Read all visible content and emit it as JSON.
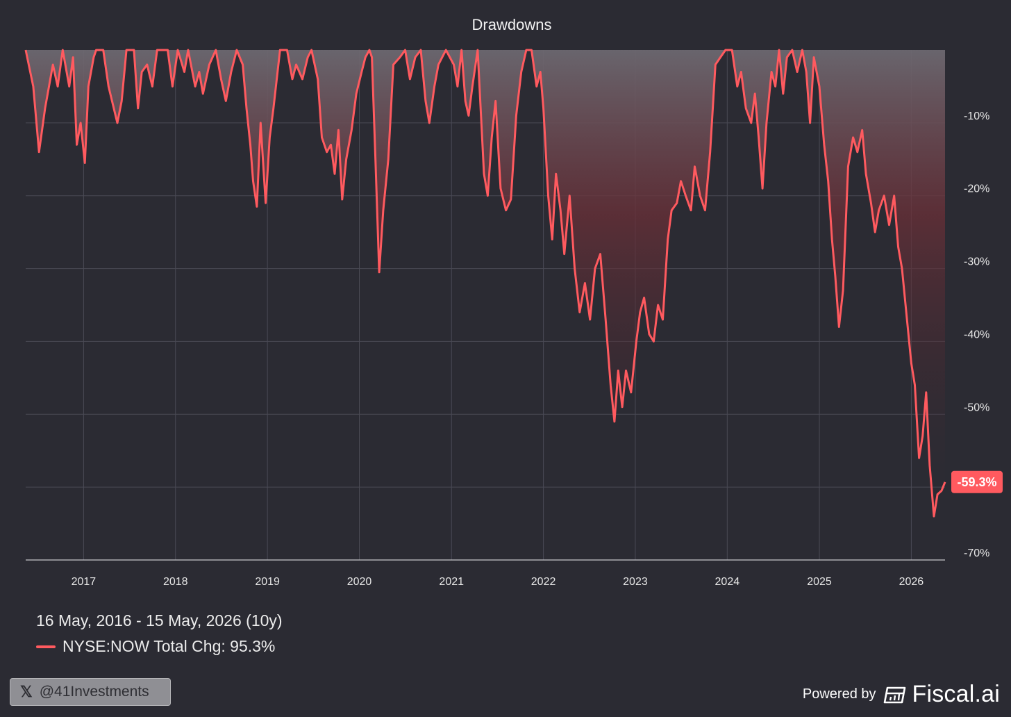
{
  "chart_data": {
    "type": "area",
    "title": "Drawdowns",
    "xlabel": "",
    "ylabel": "",
    "x_range": [
      "2016-05-16",
      "2026-05-15"
    ],
    "ylim": [
      -70,
      0
    ],
    "y_ticks": [
      -10,
      -20,
      -30,
      -40,
      -50,
      -60,
      -70
    ],
    "y_tick_labels": [
      "-10%",
      "-20%",
      "-30%",
      "-40%",
      "-50%",
      "",
      "-70%"
    ],
    "x_ticks": [
      "2017-01-01",
      "2018-01-01",
      "2019-01-01",
      "2020-01-01",
      "2021-01-01",
      "2022-01-01",
      "2023-01-01",
      "2024-01-01",
      "2025-01-01",
      "2026-01-01"
    ],
    "x_tick_labels": [
      "2017",
      "2018",
      "2019",
      "2020",
      "2021",
      "2022",
      "2023",
      "2024",
      "2025",
      "2026"
    ],
    "grid": true,
    "legend_position": "bottom-left",
    "series": [
      {
        "name": "NYSE:NOW Total Chg: 95.3%",
        "color": "#ff5a5f",
        "end_label": "-59.3%",
        "points": [
          [
            "2016-05-16",
            0
          ],
          [
            "2016-06-15",
            -5
          ],
          [
            "2016-07-08",
            -14
          ],
          [
            "2016-08-01",
            -8
          ],
          [
            "2016-09-01",
            -2
          ],
          [
            "2016-09-20",
            -5
          ],
          [
            "2016-10-10",
            0
          ],
          [
            "2016-11-05",
            -5
          ],
          [
            "2016-11-20",
            -1
          ],
          [
            "2016-12-05",
            -13
          ],
          [
            "2016-12-20",
            -10
          ],
          [
            "2017-01-06",
            -15.5
          ],
          [
            "2017-01-20",
            -5
          ],
          [
            "2017-02-10",
            -1
          ],
          [
            "2017-02-20",
            0
          ],
          [
            "2017-03-20",
            0
          ],
          [
            "2017-04-10",
            -5
          ],
          [
            "2017-05-01",
            -8
          ],
          [
            "2017-05-15",
            -10
          ],
          [
            "2017-06-01",
            -7
          ],
          [
            "2017-06-20",
            0
          ],
          [
            "2017-07-20",
            0
          ],
          [
            "2017-08-05",
            -8
          ],
          [
            "2017-08-20",
            -3
          ],
          [
            "2017-09-10",
            -2
          ],
          [
            "2017-10-01",
            -5
          ],
          [
            "2017-10-20",
            0
          ],
          [
            "2017-12-01",
            0
          ],
          [
            "2017-12-20",
            -5
          ],
          [
            "2018-01-10",
            0
          ],
          [
            "2018-02-05",
            -3
          ],
          [
            "2018-02-20",
            0
          ],
          [
            "2018-03-20",
            -5
          ],
          [
            "2018-04-05",
            -3
          ],
          [
            "2018-04-20",
            -6
          ],
          [
            "2018-05-15",
            -2
          ],
          [
            "2018-06-10",
            0
          ],
          [
            "2018-07-01",
            -4
          ],
          [
            "2018-07-20",
            -7
          ],
          [
            "2018-08-10",
            -3
          ],
          [
            "2018-09-01",
            0
          ],
          [
            "2018-09-25",
            -2
          ],
          [
            "2018-10-10",
            -8
          ],
          [
            "2018-10-25",
            -13
          ],
          [
            "2018-11-05",
            -18
          ],
          [
            "2018-11-20",
            -21.5
          ],
          [
            "2018-12-05",
            -10
          ],
          [
            "2018-12-25",
            -21
          ],
          [
            "2019-01-10",
            -12
          ],
          [
            "2019-01-25",
            -8
          ],
          [
            "2019-02-20",
            0
          ],
          [
            "2019-03-20",
            0
          ],
          [
            "2019-04-10",
            -4
          ],
          [
            "2019-04-25",
            -2
          ],
          [
            "2019-05-20",
            -4
          ],
          [
            "2019-06-10",
            -1
          ],
          [
            "2019-06-25",
            0
          ],
          [
            "2019-07-20",
            -4
          ],
          [
            "2019-08-05",
            -12
          ],
          [
            "2019-08-25",
            -14
          ],
          [
            "2019-09-10",
            -13
          ],
          [
            "2019-09-25",
            -17
          ],
          [
            "2019-10-10",
            -11
          ],
          [
            "2019-10-25",
            -20.5
          ],
          [
            "2019-11-10",
            -15
          ],
          [
            "2019-12-01",
            -11
          ],
          [
            "2019-12-20",
            -6
          ],
          [
            "2020-01-10",
            -3
          ],
          [
            "2020-01-25",
            -1
          ],
          [
            "2020-02-10",
            0
          ],
          [
            "2020-02-20",
            -1
          ],
          [
            "2020-03-05",
            -15
          ],
          [
            "2020-03-20",
            -30.5
          ],
          [
            "2020-04-05",
            -22
          ],
          [
            "2020-04-25",
            -15
          ],
          [
            "2020-05-15",
            -2
          ],
          [
            "2020-06-10",
            -1
          ],
          [
            "2020-07-01",
            0
          ],
          [
            "2020-07-20",
            -4
          ],
          [
            "2020-08-10",
            -1
          ],
          [
            "2020-09-01",
            0
          ],
          [
            "2020-09-20",
            -7
          ],
          [
            "2020-10-05",
            -10
          ],
          [
            "2020-10-25",
            -5
          ],
          [
            "2020-11-10",
            -2
          ],
          [
            "2020-12-10",
            0
          ],
          [
            "2021-01-10",
            -2
          ],
          [
            "2021-01-25",
            -5
          ],
          [
            "2021-02-10",
            0
          ],
          [
            "2021-02-25",
            -7
          ],
          [
            "2021-03-10",
            -9
          ],
          [
            "2021-03-25",
            -5
          ],
          [
            "2021-04-15",
            0
          ],
          [
            "2021-05-10",
            -17
          ],
          [
            "2021-05-25",
            -20
          ],
          [
            "2021-06-10",
            -12
          ],
          [
            "2021-06-25",
            -7
          ],
          [
            "2021-07-15",
            -19
          ],
          [
            "2021-08-05",
            -22
          ],
          [
            "2021-08-25",
            -20.5
          ],
          [
            "2021-09-15",
            -9
          ],
          [
            "2021-10-05",
            -3
          ],
          [
            "2021-10-25",
            0
          ],
          [
            "2021-11-15",
            0
          ],
          [
            "2021-12-05",
            -5
          ],
          [
            "2021-12-20",
            -3
          ],
          [
            "2022-01-01",
            -8
          ],
          [
            "2022-01-20",
            -20
          ],
          [
            "2022-02-05",
            -26
          ],
          [
            "2022-02-20",
            -17
          ],
          [
            "2022-03-10",
            -22
          ],
          [
            "2022-03-25",
            -28
          ],
          [
            "2022-04-15",
            -20
          ],
          [
            "2022-05-05",
            -30
          ],
          [
            "2022-05-25",
            -36
          ],
          [
            "2022-06-15",
            -32
          ],
          [
            "2022-07-05",
            -37
          ],
          [
            "2022-07-25",
            -30
          ],
          [
            "2022-08-15",
            -28
          ],
          [
            "2022-09-05",
            -37
          ],
          [
            "2022-09-25",
            -46
          ],
          [
            "2022-10-10",
            -51
          ],
          [
            "2022-10-25",
            -44
          ],
          [
            "2022-11-10",
            -49
          ],
          [
            "2022-11-25",
            -44
          ],
          [
            "2022-12-15",
            -47
          ],
          [
            "2023-01-05",
            -40
          ],
          [
            "2023-01-20",
            -36
          ],
          [
            "2023-02-05",
            -34
          ],
          [
            "2023-02-25",
            -39
          ],
          [
            "2023-03-15",
            -40
          ],
          [
            "2023-04-01",
            -35
          ],
          [
            "2023-04-20",
            -37
          ],
          [
            "2023-05-10",
            -26
          ],
          [
            "2023-05-25",
            -22
          ],
          [
            "2023-06-15",
            -21
          ],
          [
            "2023-07-01",
            -18
          ],
          [
            "2023-07-20",
            -20
          ],
          [
            "2023-08-10",
            -22
          ],
          [
            "2023-08-25",
            -16
          ],
          [
            "2023-09-15",
            -20
          ],
          [
            "2023-10-05",
            -22
          ],
          [
            "2023-10-25",
            -14
          ],
          [
            "2023-11-15",
            -2
          ],
          [
            "2023-12-05",
            -1
          ],
          [
            "2023-12-25",
            0
          ],
          [
            "2024-01-20",
            0
          ],
          [
            "2024-02-10",
            -5
          ],
          [
            "2024-02-25",
            -3
          ],
          [
            "2024-03-15",
            -8
          ],
          [
            "2024-04-05",
            -10
          ],
          [
            "2024-04-20",
            -6
          ],
          [
            "2024-05-05",
            -12
          ],
          [
            "2024-05-20",
            -19
          ],
          [
            "2024-06-05",
            -10
          ],
          [
            "2024-06-25",
            -3
          ],
          [
            "2024-07-10",
            -5
          ],
          [
            "2024-07-25",
            0
          ],
          [
            "2024-08-10",
            -6
          ],
          [
            "2024-08-25",
            -1
          ],
          [
            "2024-09-15",
            0
          ],
          [
            "2024-10-05",
            -3
          ],
          [
            "2024-10-25",
            0
          ],
          [
            "2024-11-10",
            -3
          ],
          [
            "2024-11-25",
            -10
          ],
          [
            "2024-12-10",
            -1
          ],
          [
            "2025-01-01",
            -5
          ],
          [
            "2025-01-20",
            -13
          ],
          [
            "2025-02-05",
            -18
          ],
          [
            "2025-02-20",
            -26
          ],
          [
            "2025-03-05",
            -31
          ],
          [
            "2025-03-20",
            -38
          ],
          [
            "2025-04-05",
            -33
          ],
          [
            "2025-04-25",
            -16
          ],
          [
            "2025-05-15",
            -12
          ],
          [
            "2025-06-01",
            -14
          ],
          [
            "2025-06-20",
            -11
          ],
          [
            "2025-07-05",
            -17
          ],
          [
            "2025-07-25",
            -21
          ],
          [
            "2025-08-10",
            -25
          ],
          [
            "2025-08-25",
            -22
          ],
          [
            "2025-09-15",
            -20
          ],
          [
            "2025-10-05",
            -24
          ],
          [
            "2025-10-25",
            -20
          ],
          [
            "2025-11-10",
            -27
          ],
          [
            "2025-11-25",
            -30
          ],
          [
            "2025-12-15",
            -37
          ],
          [
            "2026-01-01",
            -43
          ],
          [
            "2026-01-15",
            -46
          ],
          [
            "2026-02-01",
            -56
          ],
          [
            "2026-02-15",
            -53
          ],
          [
            "2026-03-01",
            -47
          ],
          [
            "2026-03-15",
            -57
          ],
          [
            "2026-04-01",
            -64
          ],
          [
            "2026-04-15",
            -61
          ],
          [
            "2026-05-01",
            -60.5
          ],
          [
            "2026-05-15",
            -59.3
          ]
        ]
      }
    ]
  },
  "footer": {
    "date_range": "16 May, 2016 - 15 May, 2026 (10y)",
    "legend_label": "NYSE:NOW Total Chg: 95.3%"
  },
  "attribution": {
    "handle": "@41Investments",
    "powered_by": "Powered by",
    "brand": "Fiscal.ai"
  },
  "icons": {
    "social": "x-logo-icon",
    "brand": "fiscal-ai-logo-icon"
  },
  "colors": {
    "background": "#2b2b33",
    "series": "#ff5a5f",
    "grid": "#4a4a55"
  }
}
